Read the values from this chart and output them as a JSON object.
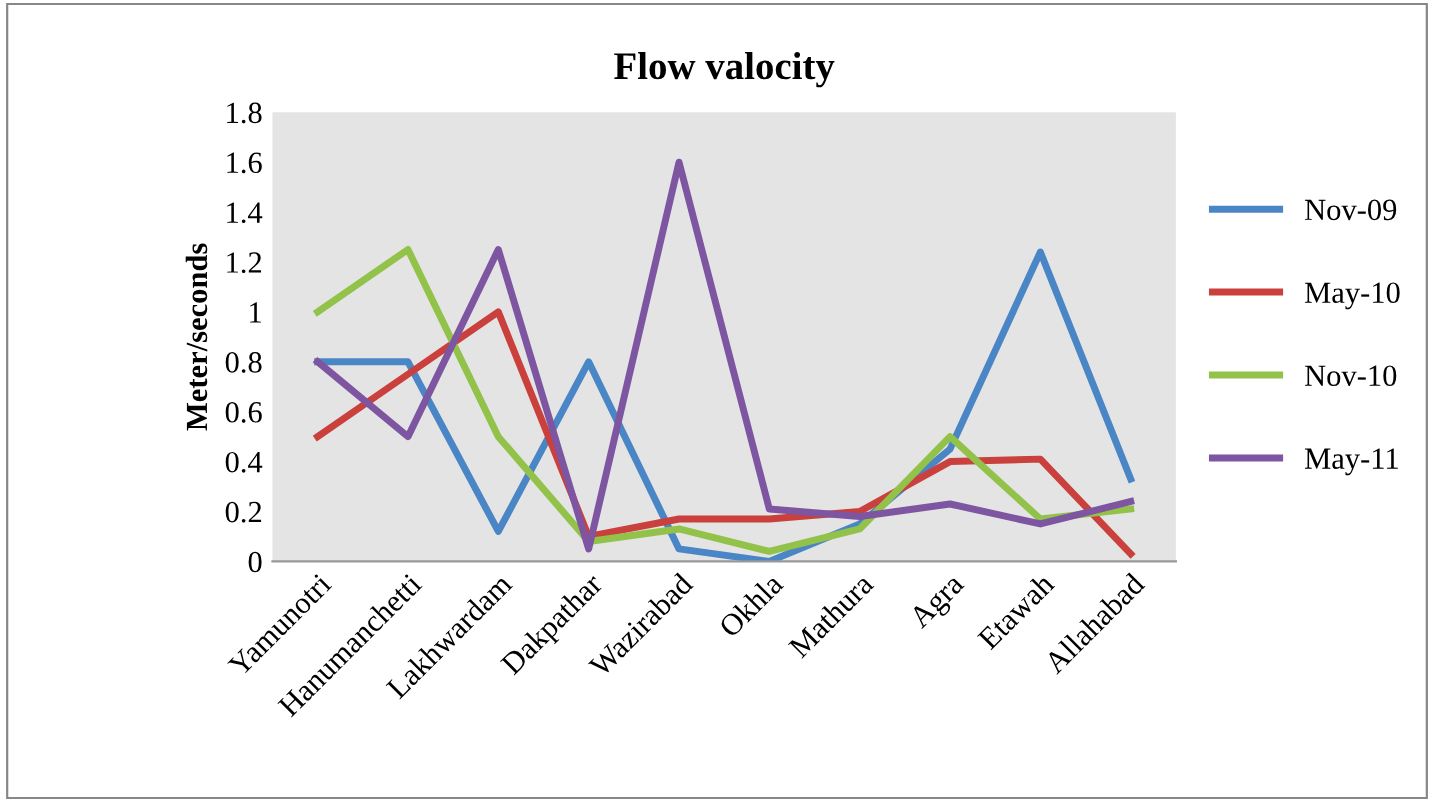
{
  "chart_data": {
    "type": "line",
    "title": "Flow valocity",
    "ylabel": "Meter/seconds",
    "categories": [
      "Yamunotri",
      "Hanumanchetti",
      "Lakhwardam",
      "Dakpathar",
      "Wazirabad",
      "Okhla",
      "Mathura",
      "Agra",
      "Etawah",
      "Allahabad"
    ],
    "series": [
      {
        "name": "Nov-09",
        "color": "#4a86c5",
        "values": [
          0.8,
          0.8,
          0.12,
          0.8,
          0.05,
          0,
          0.15,
          0.45,
          1.24,
          0.33
        ]
      },
      {
        "name": "May-10",
        "color": "#c9403c",
        "values": [
          0.5,
          0.75,
          1.0,
          0.1,
          0.17,
          0.17,
          0.2,
          0.4,
          0.41,
          0.03
        ]
      },
      {
        "name": "Nov-10",
        "color": "#92c24a",
        "values": [
          1.0,
          1.25,
          0.5,
          0.08,
          0.13,
          0.04,
          0.13,
          0.5,
          0.17,
          0.21
        ]
      },
      {
        "name": "May-11",
        "color": "#7d55a0",
        "values": [
          0.8,
          0.5,
          1.25,
          0.05,
          1.6,
          0.21,
          0.18,
          0.23,
          0.15,
          0.24
        ]
      }
    ],
    "ylim": [
      0,
      1.8
    ],
    "yticks": [
      0,
      0.2,
      0.4,
      0.6,
      0.8,
      1,
      1.2,
      1.4,
      1.6,
      1.8
    ],
    "grid": false,
    "legend": "right",
    "marker": "none",
    "line_style": "solid"
  }
}
